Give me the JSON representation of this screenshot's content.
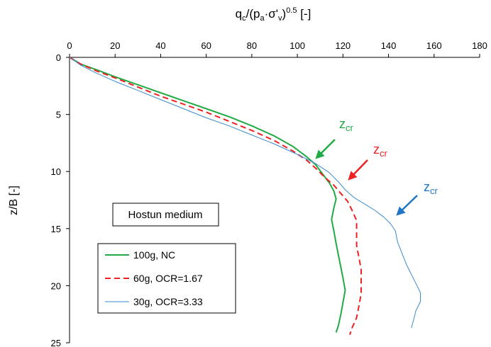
{
  "chart_data": {
    "type": "line",
    "x_axis": {
      "label_parts": {
        "q": "q",
        "c": "c",
        "mid": "/(p",
        "a": "a",
        "dot": "·σ'",
        "v": "v",
        "close": ")",
        "exp": "0.5",
        "unit": " [-]"
      },
      "range": [
        0,
        180
      ],
      "ticks": [
        "0",
        "20",
        "40",
        "60",
        "80",
        "100",
        "120",
        "140",
        "160",
        "180"
      ],
      "position": "top"
    },
    "y_axis": {
      "label": "z/B [-]",
      "range": [
        0,
        25
      ],
      "inverted": true,
      "ticks": [
        "0",
        "5",
        "10",
        "15",
        "20",
        "25"
      ]
    },
    "grid": false,
    "legend": {
      "placement": "bottom-left"
    },
    "annotation_box": "Hostun medium",
    "series": [
      {
        "name": "100g, NC",
        "color": "#22aa44",
        "style": "solid",
        "points": [
          [
            0,
            0
          ],
          [
            5,
            0.6
          ],
          [
            12,
            1.1
          ],
          [
            20,
            1.7
          ],
          [
            30,
            2.4
          ],
          [
            40,
            3.1
          ],
          [
            50,
            3.8
          ],
          [
            60,
            4.5
          ],
          [
            70,
            5.2
          ],
          [
            80,
            6.0
          ],
          [
            90,
            6.9
          ],
          [
            98,
            7.8
          ],
          [
            104,
            8.7
          ],
          [
            108,
            9.4
          ],
          [
            111,
            10.2
          ],
          [
            114,
            11.0
          ],
          [
            116,
            11.7
          ],
          [
            117,
            12.4
          ],
          [
            116,
            13.2
          ],
          [
            115,
            14.2
          ],
          [
            116,
            15.2
          ],
          [
            117,
            16.3
          ],
          [
            118,
            17.3
          ],
          [
            119,
            18.3
          ],
          [
            120,
            19.3
          ],
          [
            121,
            20.4
          ],
          [
            120,
            21.5
          ],
          [
            119,
            22.6
          ],
          [
            118,
            23.5
          ],
          [
            117,
            24.1
          ]
        ]
      },
      {
        "name": "60g, OCR=1.67",
        "color": "#ee2222",
        "style": "dashed",
        "points": [
          [
            0,
            0
          ],
          [
            5,
            0.6
          ],
          [
            12,
            1.2
          ],
          [
            20,
            1.8
          ],
          [
            30,
            2.6
          ],
          [
            40,
            3.4
          ],
          [
            50,
            4.1
          ],
          [
            60,
            4.8
          ],
          [
            70,
            5.6
          ],
          [
            80,
            6.4
          ],
          [
            90,
            7.3
          ],
          [
            98,
            8.2
          ],
          [
            104,
            9.0
          ],
          [
            108,
            9.7
          ],
          [
            112,
            10.5
          ],
          [
            116,
            11.2
          ],
          [
            119,
            11.9
          ],
          [
            122,
            12.6
          ],
          [
            124,
            13.4
          ],
          [
            126,
            14.3
          ],
          [
            126,
            15.3
          ],
          [
            126,
            16.5
          ],
          [
            127,
            17.5
          ],
          [
            128,
            18.6
          ],
          [
            128,
            19.6
          ],
          [
            128,
            20.7
          ],
          [
            127,
            21.8
          ],
          [
            126,
            22.8
          ],
          [
            124,
            23.7
          ],
          [
            123,
            24.3
          ]
        ]
      },
      {
        "name": "30g, OCR=3.33",
        "color": "#3a8bd0",
        "style": "solid",
        "points": [
          [
            0,
            0
          ],
          [
            5,
            0.7
          ],
          [
            12,
            1.4
          ],
          [
            20,
            2.1
          ],
          [
            30,
            2.9
          ],
          [
            40,
            3.7
          ],
          [
            50,
            4.5
          ],
          [
            60,
            5.3
          ],
          [
            70,
            6.0
          ],
          [
            80,
            6.8
          ],
          [
            90,
            7.6
          ],
          [
            100,
            8.5
          ],
          [
            108,
            9.3
          ],
          [
            114,
            10.1
          ],
          [
            118,
            10.9
          ],
          [
            121,
            11.6
          ],
          [
            125,
            12.3
          ],
          [
            130,
            12.9
          ],
          [
            134,
            13.4
          ],
          [
            138,
            14.0
          ],
          [
            141,
            14.6
          ],
          [
            143,
            15.2
          ],
          [
            144,
            16.2
          ],
          [
            146,
            17.2
          ],
          [
            148,
            18.2
          ],
          [
            150,
            19.0
          ],
          [
            152,
            19.8
          ],
          [
            154,
            20.6
          ],
          [
            154,
            21.4
          ],
          [
            152,
            22.2
          ],
          [
            151,
            23.0
          ],
          [
            150,
            23.7
          ]
        ]
      }
    ],
    "annotations": [
      {
        "main": "z",
        "sub": "cr",
        "color": "#22aa44"
      },
      {
        "main": "z",
        "sub": "cr",
        "color": "#ee2222"
      },
      {
        "main": "z",
        "sub": "cr",
        "color": "#1f77c4"
      }
    ]
  }
}
